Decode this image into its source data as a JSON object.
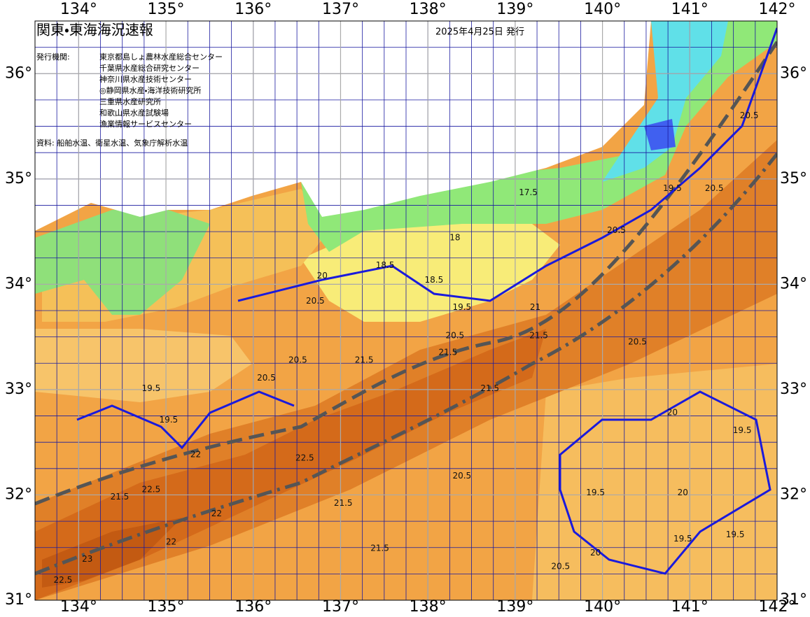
{
  "header": {
    "title": "関東・東海海況速報",
    "date": "2025年4月25日 発行",
    "issuer_label": "発行機関:",
    "agencies": [
      "東京都島しょ農林水産総合センター",
      "千葉県水産総合研究センター",
      "神奈川県水産技術センター",
      "◎静岡県水産・海洋技術研究所",
      "三重県水産研究所",
      "和歌山県水産試験場",
      "漁業情報サービスセンター"
    ],
    "source": "資料: 船舶水温、衛星水温、気象庁解析水温"
  },
  "map": {
    "lonlim": [
      133.5,
      142
    ],
    "latlim": [
      31,
      36.5
    ],
    "grid_step": 0.25,
    "lonticks": [
      {
        "value": 134,
        "label": "134°"
      },
      {
        "value": 135,
        "label": "135°"
      },
      {
        "value": 136,
        "label": "136°"
      },
      {
        "value": 137,
        "label": "137°"
      },
      {
        "value": 138,
        "label": "138°"
      },
      {
        "value": 139,
        "label": "139°"
      },
      {
        "value": 140,
        "label": "140°"
      },
      {
        "value": 141,
        "label": "141°"
      },
      {
        "value": 142,
        "label": "142°"
      }
    ],
    "latticks": [
      {
        "value": 31,
        "label": "31°"
      },
      {
        "value": 32,
        "label": "32°"
      },
      {
        "value": 33,
        "label": "33°"
      },
      {
        "value": 34,
        "label": "34°"
      },
      {
        "value": 35,
        "label": "35°"
      },
      {
        "value": 36,
        "label": "36°"
      }
    ],
    "contour_labels": [
      {
        "value": 17.5,
        "lon": 139.15,
        "lat": 34.87
      },
      {
        "value": 18,
        "lon": 138.31,
        "lat": 34.44
      },
      {
        "value": 18.5,
        "lon": 137.51,
        "lat": 34.18
      },
      {
        "value": 18.5,
        "lon": 138.07,
        "lat": 34.04
      },
      {
        "value": 19.5,
        "lon": 138.39,
        "lat": 33.78
      },
      {
        "value": 20,
        "lon": 136.79,
        "lat": 34.08
      },
      {
        "value": 20.5,
        "lon": 136.71,
        "lat": 33.84
      },
      {
        "value": 21,
        "lon": 139.23,
        "lat": 33.78
      },
      {
        "value": 20.5,
        "lon": 138.31,
        "lat": 33.51
      },
      {
        "value": 21.5,
        "lon": 138.23,
        "lat": 33.35
      },
      {
        "value": 21.5,
        "lon": 139.27,
        "lat": 33.51
      },
      {
        "value": 21.5,
        "lon": 138.71,
        "lat": 33.01
      },
      {
        "value": 21.5,
        "lon": 137.27,
        "lat": 33.28
      },
      {
        "value": 20.5,
        "lon": 136.51,
        "lat": 33.28
      },
      {
        "value": 20.5,
        "lon": 136.15,
        "lat": 33.11
      },
      {
        "value": 19.5,
        "lon": 134.83,
        "lat": 33.01
      },
      {
        "value": 19.5,
        "lon": 135.03,
        "lat": 32.71
      },
      {
        "value": 22,
        "lon": 135.34,
        "lat": 32.38
      },
      {
        "value": 22.5,
        "lon": 136.59,
        "lat": 32.35
      },
      {
        "value": 22.5,
        "lon": 134.83,
        "lat": 32.05
      },
      {
        "value": 21.5,
        "lon": 134.47,
        "lat": 31.98
      },
      {
        "value": 22,
        "lon": 135.58,
        "lat": 31.82
      },
      {
        "value": 22,
        "lon": 135.06,
        "lat": 31.55
      },
      {
        "value": 23,
        "lon": 134.1,
        "lat": 31.39
      },
      {
        "value": 22.5,
        "lon": 133.82,
        "lat": 31.19
      },
      {
        "value": 21.5,
        "lon": 137.03,
        "lat": 31.92
      },
      {
        "value": 21.5,
        "lon": 137.45,
        "lat": 31.49
      },
      {
        "value": 20.5,
        "lon": 138.39,
        "lat": 32.18
      },
      {
        "value": 19.5,
        "lon": 139.92,
        "lat": 32.02
      },
      {
        "value": 20.5,
        "lon": 139.52,
        "lat": 31.32
      },
      {
        "value": 19.5,
        "lon": 140.92,
        "lat": 31.58
      },
      {
        "value": 19.5,
        "lon": 141.6,
        "lat": 32.61
      },
      {
        "value": 19.5,
        "lon": 141.52,
        "lat": 31.62
      },
      {
        "value": 20.5,
        "lon": 140.4,
        "lat": 33.45
      },
      {
        "value": 20.5,
        "lon": 141.28,
        "lat": 34.91
      },
      {
        "value": 19.5,
        "lon": 140.8,
        "lat": 34.91
      },
      {
        "value": 20.5,
        "lon": 141.68,
        "lat": 35.6
      },
      {
        "value": 20.5,
        "lon": 140.16,
        "lat": 34.51
      },
      {
        "value": 20,
        "lon": 139.92,
        "lat": 31.45
      },
      {
        "value": 20,
        "lon": 140.92,
        "lat": 32.02
      },
      {
        "value": 20,
        "lon": 140.8,
        "lat": 32.78
      }
    ]
  }
}
